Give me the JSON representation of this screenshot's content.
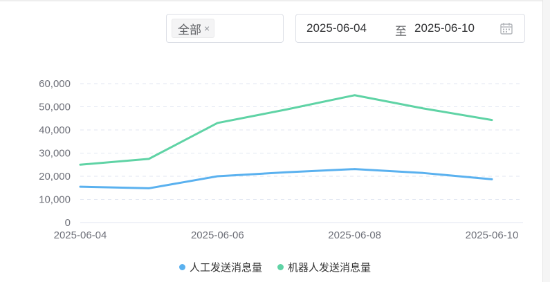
{
  "filter": {
    "tag_label": "全部",
    "tag_close": "×"
  },
  "date_range": {
    "start": "2025-06-04",
    "separator": "至",
    "end": "2025-06-10",
    "icon": "calendar-icon"
  },
  "chart_data": {
    "type": "line",
    "title": "",
    "xlabel": "",
    "ylabel": "",
    "x": [
      "2025-06-04",
      "2025-06-05",
      "2025-06-06",
      "2025-06-07",
      "2025-06-08",
      "2025-06-09",
      "2025-06-10"
    ],
    "x_tick_labels": [
      "2025-06-04",
      "2025-06-06",
      "2025-06-08",
      "2025-06-10"
    ],
    "y_ticks": [
      "0",
      "10,000",
      "20,000",
      "30,000",
      "40,000",
      "50,000",
      "60,000"
    ],
    "ylim": [
      0,
      60000
    ],
    "grid": true,
    "legend_position": "bottom-center",
    "series": [
      {
        "name": "人工发送消息量",
        "color": "#5ab1ef",
        "values": [
          15500,
          14800,
          20000,
          21700,
          23100,
          21400,
          18700
        ]
      },
      {
        "name": "机器人发送消息量",
        "color": "#5fd3a5",
        "values": [
          25000,
          27500,
          43000,
          48800,
          55000,
          49300,
          44300
        ]
      }
    ]
  }
}
